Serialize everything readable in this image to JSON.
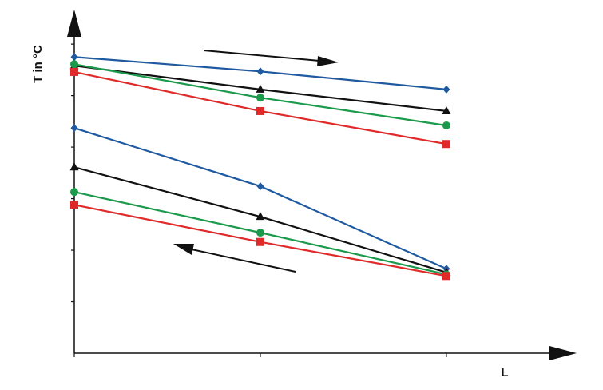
{
  "chart_data": {
    "type": "line",
    "y_label": "T in °C",
    "x_label": "L",
    "x": [
      0,
      1,
      2
    ],
    "xlim": [
      0,
      2.7
    ],
    "xticks": [
      0,
      1,
      2
    ],
    "ylim": [
      0,
      6.7
    ],
    "yticks": [
      1,
      2,
      3,
      4,
      5,
      6
    ],
    "series": [
      {
        "color": "#1f5aa0",
        "marker": "diamond",
        "values": [
          5.75,
          5.47,
          5.12
        ]
      },
      {
        "color": "#111111",
        "marker": "triangle",
        "values": [
          5.58,
          5.12,
          4.7
        ]
      },
      {
        "color": "#1a9a4a",
        "marker": "circle",
        "values": [
          5.61,
          4.96,
          4.42
        ]
      },
      {
        "color": "#e02a2a",
        "marker": "square",
        "values": [
          5.46,
          4.7,
          4.06
        ]
      },
      {
        "color": "#1f5aa0",
        "marker": "diamond",
        "values": [
          4.37,
          3.24,
          1.64
        ]
      },
      {
        "color": "#111111",
        "marker": "triangle",
        "values": [
          3.61,
          2.65,
          1.57
        ]
      },
      {
        "color": "#1a9a4a",
        "marker": "circle",
        "values": [
          3.13,
          2.34,
          1.53
        ]
      },
      {
        "color": "#e02a2a",
        "marker": "square",
        "values": [
          2.88,
          2.16,
          1.5
        ]
      }
    ]
  }
}
